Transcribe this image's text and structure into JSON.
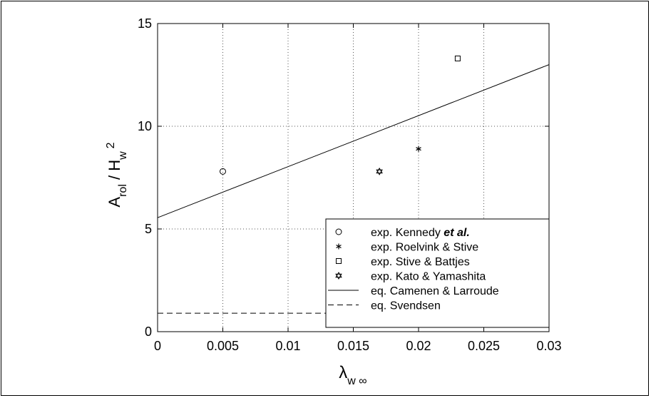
{
  "chart_data": {
    "type": "scatter",
    "xlim": [
      0,
      0.03
    ],
    "ylim": [
      0,
      15
    ],
    "x_ticks": [
      0,
      0.005,
      0.01,
      0.015,
      0.02,
      0.025,
      0.03
    ],
    "x_tick_labels": [
      "0",
      "0.005",
      "0.01",
      "0.015",
      "0.02",
      "0.025",
      "0.03"
    ],
    "y_ticks": [
      0,
      5,
      10,
      15
    ],
    "y_tick_labels": [
      "0",
      "5",
      "10",
      "15"
    ],
    "grid": true,
    "legend_position": "bottom-right",
    "xlabel": {
      "main": "λ",
      "sub": "w ∞"
    },
    "ylabel": {
      "main": "A",
      "sub1": "rol",
      "mid": " / H",
      "sub2": "w",
      "sup": "2"
    },
    "series": [
      {
        "name": "exp. Kennedy ",
        "name_emph": "et al.",
        "marker": "circle",
        "points": [
          [
            0.005,
            7.8
          ]
        ]
      },
      {
        "name": "exp. Roelvink & Stive",
        "marker": "asterisk",
        "points": [
          [
            0.02,
            8.9
          ]
        ]
      },
      {
        "name": "exp. Stive & Battjes",
        "marker": "square",
        "points": [
          [
            0.023,
            13.3
          ]
        ]
      },
      {
        "name": "exp. Kato & Yamashita",
        "marker": "hexagram",
        "points": [
          [
            0.017,
            7.8
          ]
        ]
      },
      {
        "name": "eq. Camenen & Larroude",
        "line": "solid",
        "points": [
          [
            0,
            5.55
          ],
          [
            0.03,
            13.0
          ]
        ]
      },
      {
        "name": "eq. Svendsen",
        "line": "dashed",
        "points": [
          [
            0,
            0.9
          ],
          [
            0.03,
            0.9
          ]
        ]
      }
    ]
  }
}
